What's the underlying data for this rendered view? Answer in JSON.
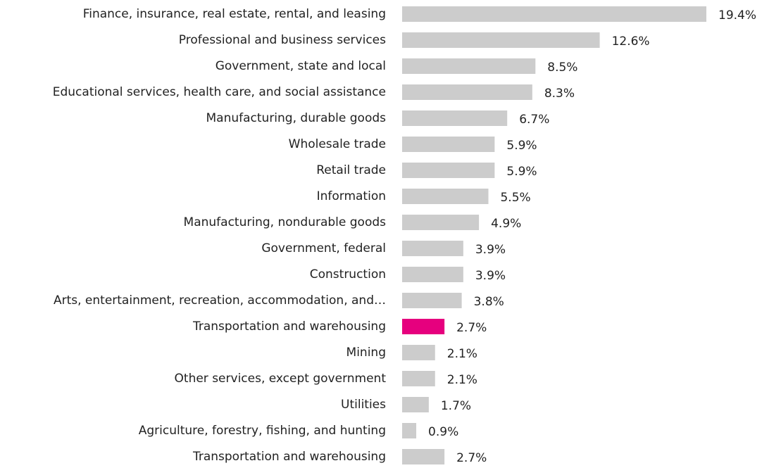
{
  "chart_data": {
    "type": "hbar",
    "categories": [
      "Finance, insurance, real estate, rental, and leasing",
      "Professional and business services",
      "Government, state and local",
      "Educational services, health care, and social assistance",
      "Manufacturing, durable goods",
      "Wholesale trade",
      "Retail trade",
      "Information",
      "Manufacturing, nondurable goods",
      "Government, federal",
      "Construction",
      "Arts, entertainment, recreation, accommodation, and…",
      "Transportation and warehousing",
      "Mining",
      "Other services, except government",
      "Utilities",
      "Agriculture, forestry, fishing, and hunting",
      "Transportation and warehousing"
    ],
    "values": [
      19.4,
      12.6,
      8.5,
      8.3,
      6.7,
      5.9,
      5.9,
      5.5,
      4.9,
      3.9,
      3.9,
      3.8,
      2.7,
      2.1,
      2.1,
      1.7,
      0.9,
      2.7
    ],
    "value_labels": [
      "19.4%",
      "12.6%",
      "8.5%",
      "8.3%",
      "6.7%",
      "5.9%",
      "5.9%",
      "5.5%",
      "4.9%",
      "3.9%",
      "3.9%",
      "3.8%",
      "2.7%",
      "2.1%",
      "2.1%",
      "1.7%",
      "0.9%",
      "2.7%"
    ],
    "colors": [
      "#cccccc",
      "#cccccc",
      "#cccccc",
      "#cccccc",
      "#cccccc",
      "#cccccc",
      "#cccccc",
      "#cccccc",
      "#cccccc",
      "#cccccc",
      "#cccccc",
      "#cccccc",
      "#e6007e",
      "#cccccc",
      "#cccccc",
      "#cccccc",
      "#cccccc",
      "#cccccc"
    ]
  }
}
